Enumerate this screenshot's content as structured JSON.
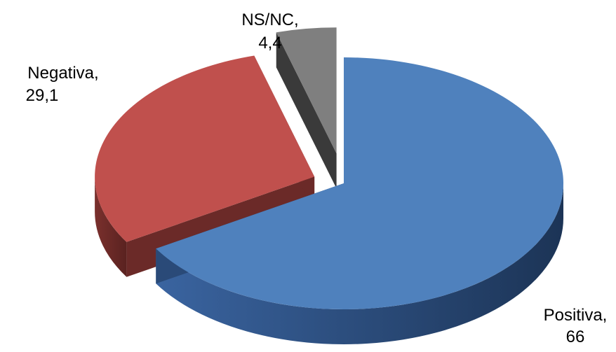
{
  "chart_data": {
    "type": "pie",
    "title": "",
    "categories": [
      "Positiva",
      "Negativa",
      "NS/NC"
    ],
    "values": [
      66,
      29.1,
      4.4
    ],
    "value_labels": [
      "66",
      "29,1",
      "4,4"
    ],
    "series": [
      {
        "values": [
          66,
          29.1,
          4.4
        ]
      }
    ],
    "style": "3d-exploded",
    "legend": "none",
    "slice_labels": [
      "Positiva,",
      "Negativa,",
      "NS/NC,"
    ],
    "colors": [
      "#4F81BD",
      "#C0504D",
      "#7F7F7F"
    ],
    "side_colors": [
      "#2A4A78",
      "#6B2A28",
      "#3A3A3A"
    ]
  }
}
